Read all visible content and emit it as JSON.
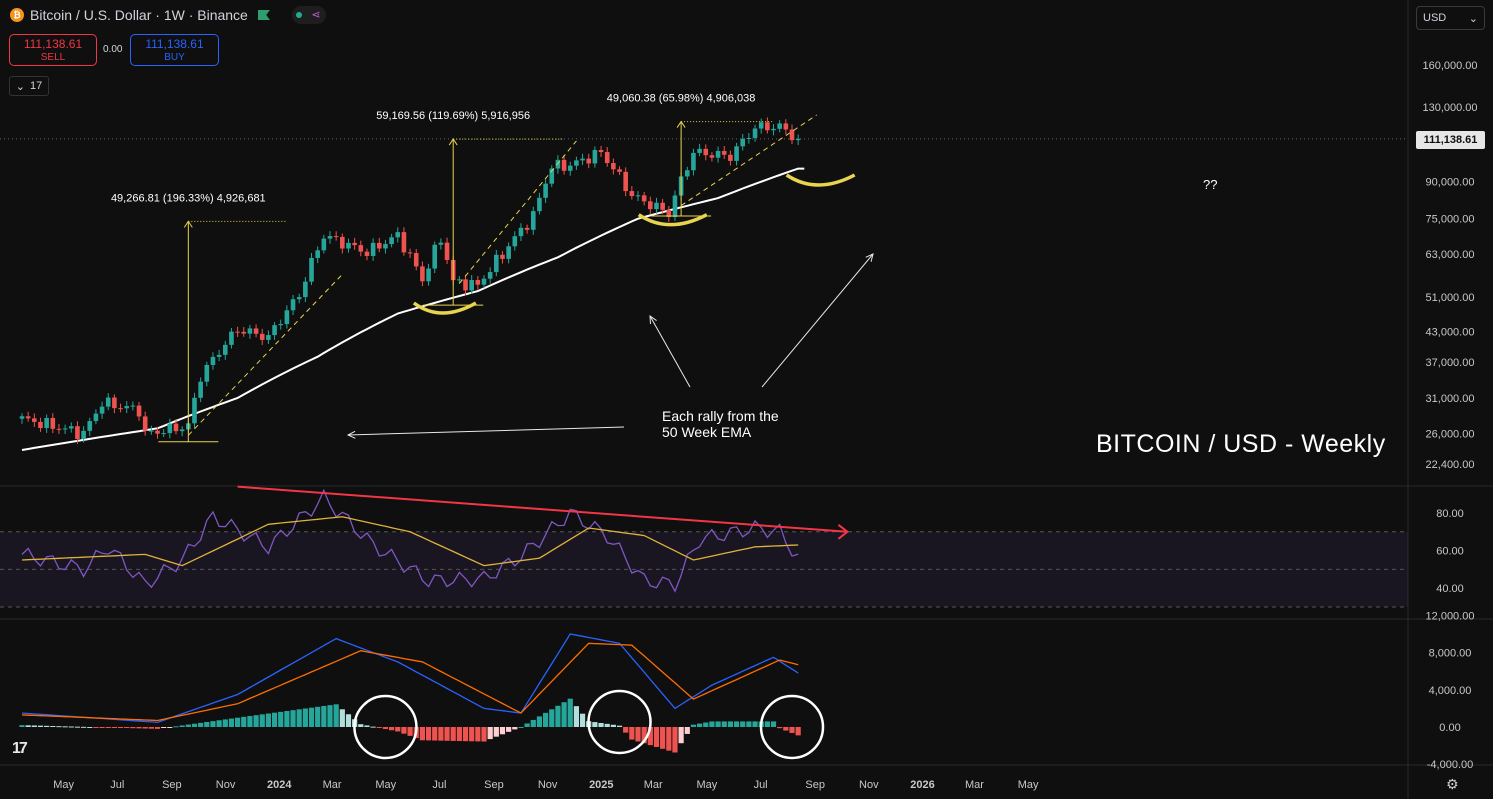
{
  "header": {
    "symbol": "Bitcoin / U.S. Dollar · 1W · Binance",
    "logo_letter": "₿",
    "share_icon": "share-icon"
  },
  "trade": {
    "sell_price": "111,138.61",
    "sell_label": "SELL",
    "spread": "0.00",
    "buy_price": "111,138.61",
    "buy_label": "BUY"
  },
  "indicators_toggle": {
    "count": "17"
  },
  "currency": {
    "value": "USD"
  },
  "last_price_tag": "111,138.61",
  "colors": {
    "up": "#26a69a",
    "down": "#ef5350",
    "ema": "#ffffff",
    "rsi": "#7e57c2",
    "rsi_ma": "#e0b23a",
    "macd": "#2962ff",
    "signal": "#ff6d00",
    "hist_up": "#26a69a",
    "hist_up_weak": "#b2dfdb",
    "hist_down": "#ef5350",
    "hist_down_weak": "#ffcdd2",
    "annot_yellow": "#e8d44d",
    "trend_red": "#f23645"
  },
  "annotations": {
    "measure_1": "49,266.81 (196.33%) 4,926,681",
    "measure_2": "59,169.56 (119.69%) 5,916,956",
    "measure_3": "49,060.38 (65.98%) 4,906,038",
    "note_line1": "Each rally from the",
    "note_line2": "50 Week EMA",
    "question": "??",
    "title": "BITCOIN / USD - Weekly"
  },
  "chart_data": [
    {
      "type": "candlestick",
      "title": "Bitcoin / U.S. Dollar · 1W · Binance",
      "x_tick_labels": [
        "May",
        "Jul",
        "Sep",
        "Nov",
        "2024",
        "Mar",
        "May",
        "Jul",
        "Sep",
        "Nov",
        "2025",
        "Mar",
        "May",
        "Jul",
        "Sep",
        "Nov",
        "2026",
        "Mar",
        "May"
      ],
      "y_tick_labels": [
        "160,000.00",
        "130,000.00",
        "90,000.00",
        "75,000.00",
        "63,000.00",
        "51,000.00",
        "43,000.00",
        "37,000.00",
        "31,000.00",
        "26,000.00",
        "22,400.00"
      ],
      "scale": "log",
      "last_close": 111138.61,
      "close_waypoints": [
        {
          "t": "2023-04-03",
          "v": 28000
        },
        {
          "t": "2023-06-12",
          "v": 26000
        },
        {
          "t": "2023-07-03",
          "v": 30300
        },
        {
          "t": "2023-08-14",
          "v": 29200
        },
        {
          "t": "2023-08-21",
          "v": 26000
        },
        {
          "t": "2023-10-09",
          "v": 27000
        },
        {
          "t": "2023-10-23",
          "v": 34500
        },
        {
          "t": "2023-12-04",
          "v": 43500
        },
        {
          "t": "2024-01-08",
          "v": 41800
        },
        {
          "t": "2024-02-12",
          "v": 51500
        },
        {
          "t": "2024-03-11",
          "v": 69000
        },
        {
          "t": "2024-04-29",
          "v": 63500
        },
        {
          "t": "2024-06-03",
          "v": 69000
        },
        {
          "t": "2024-07-01",
          "v": 55500
        },
        {
          "t": "2024-07-22",
          "v": 68000
        },
        {
          "t": "2024-08-05",
          "v": 55000
        },
        {
          "t": "2024-09-02",
          "v": 54000
        },
        {
          "t": "2024-09-30",
          "v": 63000
        },
        {
          "t": "2024-11-04",
          "v": 76000
        },
        {
          "t": "2024-11-25",
          "v": 97000
        },
        {
          "t": "2024-12-16",
          "v": 97500
        },
        {
          "t": "2025-01-20",
          "v": 104000
        },
        {
          "t": "2025-02-24",
          "v": 84000
        },
        {
          "t": "2025-04-07",
          "v": 77000
        },
        {
          "t": "2025-05-05",
          "v": 104000
        },
        {
          "t": "2025-06-16",
          "v": 102000
        },
        {
          "t": "2025-07-14",
          "v": 117500
        },
        {
          "t": "2025-08-11",
          "v": 118000
        },
        {
          "t": "2025-09-01",
          "v": 111138.61
        }
      ],
      "ema_label": "50 Week EMA",
      "ema_waypoints": [
        {
          "t": "2023-04-03",
          "v": 24000
        },
        {
          "t": "2023-09-04",
          "v": 26700
        },
        {
          "t": "2023-12-04",
          "v": 31000
        },
        {
          "t": "2024-03-04",
          "v": 38000
        },
        {
          "t": "2024-06-03",
          "v": 47000
        },
        {
          "t": "2024-09-02",
          "v": 52500
        },
        {
          "t": "2024-12-02",
          "v": 62000
        },
        {
          "t": "2025-03-03",
          "v": 75000
        },
        {
          "t": "2025-06-02",
          "v": 83000
        },
        {
          "t": "2025-09-01",
          "v": 96000
        }
      ]
    },
    {
      "type": "line",
      "y_tick_labels": [
        "80.00",
        "60.00",
        "40.00"
      ],
      "bands": [
        70,
        50,
        30
      ],
      "rsi_waypoints": [
        {
          "t": "2023-04-03",
          "v": 58
        },
        {
          "t": "2023-06-12",
          "v": 50
        },
        {
          "t": "2023-07-10",
          "v": 62
        },
        {
          "t": "2023-08-21",
          "v": 42
        },
        {
          "t": "2023-10-02",
          "v": 55
        },
        {
          "t": "2023-11-06",
          "v": 78
        },
        {
          "t": "2024-01-08",
          "v": 62
        },
        {
          "t": "2024-03-11",
          "v": 88
        },
        {
          "t": "2024-05-06",
          "v": 63
        },
        {
          "t": "2024-07-08",
          "v": 44
        },
        {
          "t": "2024-09-09",
          "v": 45
        },
        {
          "t": "2024-10-21",
          "v": 57
        },
        {
          "t": "2024-12-16",
          "v": 80
        },
        {
          "t": "2025-01-27",
          "v": 68
        },
        {
          "t": "2025-03-10",
          "v": 44
        },
        {
          "t": "2025-04-14",
          "v": 42
        },
        {
          "t": "2025-05-12",
          "v": 66
        },
        {
          "t": "2025-07-14",
          "v": 72
        },
        {
          "t": "2025-08-11",
          "v": 70
        },
        {
          "t": "2025-09-01",
          "v": 56
        }
      ],
      "rsi_ma_waypoints": [
        {
          "t": "2023-04-03",
          "v": 55
        },
        {
          "t": "2023-08-21",
          "v": 58
        },
        {
          "t": "2023-10-02",
          "v": 52
        },
        {
          "t": "2024-01-08",
          "v": 74
        },
        {
          "t": "2024-04-01",
          "v": 78
        },
        {
          "t": "2024-06-17",
          "v": 70
        },
        {
          "t": "2024-09-09",
          "v": 52
        },
        {
          "t": "2024-11-11",
          "v": 56
        },
        {
          "t": "2025-01-06",
          "v": 72
        },
        {
          "t": "2025-03-10",
          "v": 68
        },
        {
          "t": "2025-05-05",
          "v": 55
        },
        {
          "t": "2025-07-14",
          "v": 62
        },
        {
          "t": "2025-09-01",
          "v": 63
        }
      ],
      "divergence_trendline": [
        {
          "t": "2023-12-04",
          "v": 94
        },
        {
          "t": "2025-10-27",
          "v": 70
        }
      ]
    },
    {
      "type": "line",
      "y_tick_labels": [
        "12,000.00",
        "8,000.00",
        "4,000.00",
        "0.00",
        "-4,000.00"
      ],
      "macd_waypoints": [
        {
          "t": "2023-04-03",
          "v": 1500
        },
        {
          "t": "2023-09-04",
          "v": 500
        },
        {
          "t": "2023-12-04",
          "v": 3500
        },
        {
          "t": "2024-03-25",
          "v": 9500
        },
        {
          "t": "2024-06-03",
          "v": 7000
        },
        {
          "t": "2024-09-09",
          "v": 2000
        },
        {
          "t": "2024-10-21",
          "v": 1500
        },
        {
          "t": "2024-12-16",
          "v": 10000
        },
        {
          "t": "2025-02-10",
          "v": 9000
        },
        {
          "t": "2025-04-14",
          "v": 2000
        },
        {
          "t": "2025-05-26",
          "v": 4500
        },
        {
          "t": "2025-08-04",
          "v": 7500
        },
        {
          "t": "2025-09-01",
          "v": 5800
        }
      ],
      "signal_waypoints": [
        {
          "t": "2023-04-03",
          "v": 1300
        },
        {
          "t": "2023-09-04",
          "v": 700
        },
        {
          "t": "2023-12-04",
          "v": 2500
        },
        {
          "t": "2024-04-22",
          "v": 8200
        },
        {
          "t": "2024-07-01",
          "v": 7000
        },
        {
          "t": "2024-10-21",
          "v": 1500
        },
        {
          "t": "2025-01-06",
          "v": 9000
        },
        {
          "t": "2025-02-24",
          "v": 8800
        },
        {
          "t": "2025-05-05",
          "v": 3000
        },
        {
          "t": "2025-08-11",
          "v": 7200
        },
        {
          "t": "2025-09-01",
          "v": 6700
        }
      ]
    }
  ]
}
